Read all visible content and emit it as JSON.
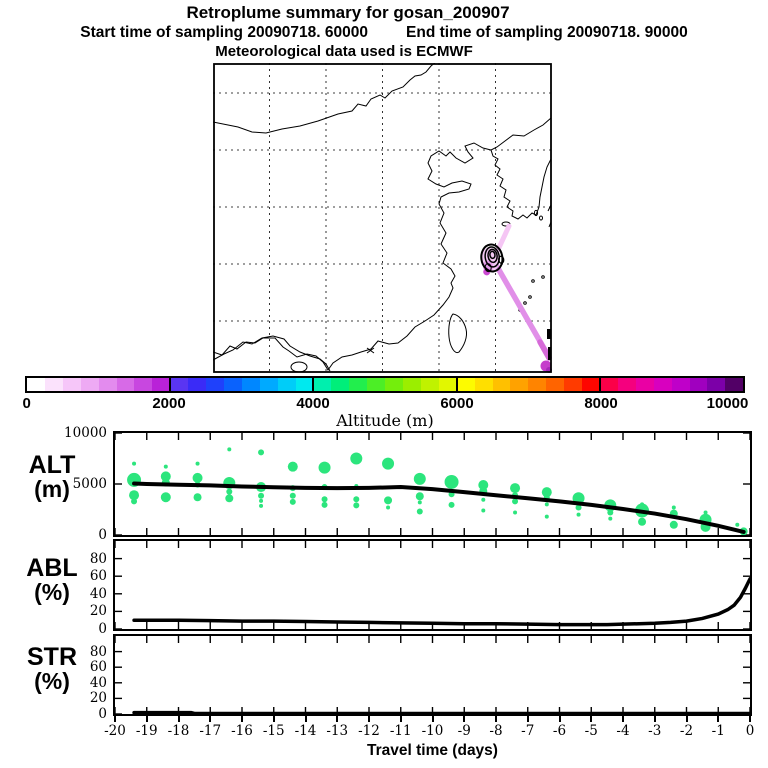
{
  "titles": {
    "main": "Retroplume summary for gosan_200907",
    "start": "Start time of sampling 20090718. 60000",
    "end": "End time of sampling 20090718. 90000",
    "met": "Meteorological data used is ECMWF"
  },
  "map": {
    "trajectory": {
      "light": "#f5c6f4",
      "mid": "#e18fe8",
      "deep": "#d66ad8",
      "end_blob": "#c53ecb",
      "end_blob_dark": "#a428b8",
      "cluster_fill_light": "#f3c8f2",
      "cluster_fill_mid": "#e39ae8",
      "cluster_fill_deep": "#cb4ad2"
    },
    "outline_color": "#000000"
  },
  "colorbar": {
    "title": "Altitude (m)",
    "tick_labels": [
      "0",
      "2000",
      "4000",
      "6000",
      "8000",
      "10000"
    ],
    "colors": [
      "#ffffff",
      "#fbe2fc",
      "#f6c6f9",
      "#eeaaf4",
      "#e38bee",
      "#d76ae7",
      "#c847e0",
      "#b922d8",
      "#5a35f2",
      "#3a2bf7",
      "#1f41fb",
      "#0a62fd",
      "#0087ff",
      "#00aaff",
      "#00cdf8",
      "#00e9ef",
      "#00efae",
      "#00ee7a",
      "#22ee4d",
      "#4cee26",
      "#74ee0c",
      "#9bee00",
      "#c0f200",
      "#e2f700",
      "#fdfb00",
      "#ffdf00",
      "#ffc000",
      "#ffa200",
      "#ff8400",
      "#ff6400",
      "#ff3b00",
      "#fe0600",
      "#fb0048",
      "#f5007e",
      "#ea00a4",
      "#d800bf",
      "#bf00c9",
      "#a000bf",
      "#7c00a8",
      "#520066"
    ]
  },
  "x_axis": {
    "labels": [
      "-20",
      "-19",
      "-18",
      "-17",
      "-16",
      "-15",
      "-14",
      "-13",
      "-12",
      "-11",
      "-10",
      "-9",
      "-8",
      "-7",
      "-6",
      "-5",
      "-4",
      "-3",
      "-2",
      "-1",
      "0"
    ],
    "title": "Travel time (days)",
    "xlim": [
      -20,
      0
    ]
  },
  "chart_data": [
    {
      "type": "scatter",
      "label": "ALT",
      "unit": "(m)",
      "ylim": [
        0,
        10000
      ],
      "yticks": [
        0,
        5000,
        10000
      ],
      "ytick_labels": [
        "0",
        "5000",
        "10000"
      ],
      "dot_color": "#2ce57d",
      "line_color": "#000000",
      "line": [
        [
          -19.4,
          5050
        ],
        [
          -19,
          5000
        ],
        [
          -18,
          4930
        ],
        [
          -17,
          4860
        ],
        [
          -16,
          4760
        ],
        [
          -15,
          4680
        ],
        [
          -14,
          4620
        ],
        [
          -13,
          4600
        ],
        [
          -12,
          4620
        ],
        [
          -11,
          4700
        ],
        [
          -10,
          4500
        ],
        [
          -9,
          4200
        ],
        [
          -8,
          3900
        ],
        [
          -7,
          3600
        ],
        [
          -6,
          3300
        ],
        [
          -5,
          2950
        ],
        [
          -4,
          2550
        ],
        [
          -3,
          2100
        ],
        [
          -2,
          1550
        ],
        [
          -1,
          900
        ],
        [
          -0.2,
          300
        ]
      ],
      "scatter": [
        [
          -19.4,
          7000,
          2
        ],
        [
          -19.4,
          5400,
          7
        ],
        [
          -19.4,
          3900,
          5
        ],
        [
          -19.4,
          3300,
          3
        ],
        [
          -18.4,
          6700,
          2
        ],
        [
          -18.4,
          5750,
          5
        ],
        [
          -18.4,
          5150,
          4
        ],
        [
          -18.4,
          3700,
          5
        ],
        [
          -17.4,
          7000,
          2
        ],
        [
          -17.4,
          5600,
          5
        ],
        [
          -17.4,
          4950,
          3
        ],
        [
          -17.4,
          3700,
          4
        ],
        [
          -16.4,
          8400,
          2
        ],
        [
          -16.4,
          5100,
          6
        ],
        [
          -16.4,
          4250,
          3
        ],
        [
          -16.4,
          3600,
          4
        ],
        [
          -15.4,
          8100,
          3
        ],
        [
          -15.4,
          4700,
          5
        ],
        [
          -15.4,
          3850,
          3
        ],
        [
          -15.4,
          3350,
          2
        ],
        [
          -15.4,
          2850,
          2
        ],
        [
          -14.4,
          6700,
          5
        ],
        [
          -14.4,
          4600,
          3
        ],
        [
          -14.4,
          3850,
          3
        ],
        [
          -14.4,
          3250,
          3
        ],
        [
          -13.4,
          6600,
          6
        ],
        [
          -13.4,
          4700,
          3
        ],
        [
          -13.4,
          3500,
          3
        ],
        [
          -13.4,
          2950,
          3
        ],
        [
          -12.4,
          7500,
          6
        ],
        [
          -12.4,
          4800,
          2
        ],
        [
          -12.4,
          3500,
          3
        ],
        [
          -12.4,
          2900,
          3
        ],
        [
          -11.4,
          7000,
          6
        ],
        [
          -11.4,
          3400,
          4
        ],
        [
          -11.4,
          2700,
          2
        ],
        [
          -10.4,
          5500,
          6
        ],
        [
          -10.4,
          3800,
          4
        ],
        [
          -10.4,
          3200,
          2
        ],
        [
          -10.4,
          2300,
          3
        ],
        [
          -9.4,
          5200,
          7
        ],
        [
          -9.4,
          4000,
          3
        ],
        [
          -9.4,
          2950,
          3
        ],
        [
          -8.4,
          4900,
          5
        ],
        [
          -8.4,
          4300,
          4
        ],
        [
          -8.4,
          3450,
          2
        ],
        [
          -8.4,
          2400,
          2
        ],
        [
          -7.4,
          4600,
          5
        ],
        [
          -7.4,
          3900,
          3
        ],
        [
          -7.4,
          3300,
          3
        ],
        [
          -7.4,
          2200,
          2
        ],
        [
          -6.4,
          4200,
          5
        ],
        [
          -6.4,
          3700,
          3
        ],
        [
          -6.4,
          3000,
          2
        ],
        [
          -6.4,
          1800,
          2
        ],
        [
          -5.4,
          3600,
          6
        ],
        [
          -5.4,
          2700,
          3
        ],
        [
          -5.4,
          2000,
          2
        ],
        [
          -4.4,
          2900,
          6
        ],
        [
          -4.4,
          2200,
          3
        ],
        [
          -4.4,
          1600,
          2
        ],
        [
          -3.4,
          3000,
          2
        ],
        [
          -3.4,
          2400,
          7
        ],
        [
          -3.4,
          1300,
          4
        ],
        [
          -2.4,
          2700,
          2
        ],
        [
          -2.4,
          2100,
          4
        ],
        [
          -2.4,
          1000,
          4
        ],
        [
          -1.4,
          2200,
          2
        ],
        [
          -1.4,
          1500,
          6
        ],
        [
          -1.4,
          800,
          5
        ],
        [
          -0.4,
          1000,
          2
        ],
        [
          -0.2,
          350,
          4
        ]
      ]
    },
    {
      "type": "line",
      "label": "ABL",
      "unit": "(%)",
      "ylim": [
        0,
        100
      ],
      "yticks": [
        0,
        20,
        40,
        60,
        80
      ],
      "ytick_labels": [
        "0",
        "20",
        "40",
        "60",
        "80"
      ],
      "line_color": "#000000",
      "line": [
        [
          -19.4,
          10
        ],
        [
          -18,
          10
        ],
        [
          -17,
          9.5
        ],
        [
          -16,
          9
        ],
        [
          -15,
          9
        ],
        [
          -14,
          8.5
        ],
        [
          -13,
          8
        ],
        [
          -12,
          7.5
        ],
        [
          -11,
          7
        ],
        [
          -10,
          6.5
        ],
        [
          -9,
          6
        ],
        [
          -8,
          6
        ],
        [
          -7,
          5.5
        ],
        [
          -6,
          5
        ],
        [
          -5,
          5
        ],
        [
          -4.5,
          5
        ],
        [
          -4,
          5.5
        ],
        [
          -3,
          6.5
        ],
        [
          -2.5,
          7.5
        ],
        [
          -2,
          9
        ],
        [
          -1.5,
          12
        ],
        [
          -1,
          17
        ],
        [
          -0.7,
          22
        ],
        [
          -0.5,
          27
        ],
        [
          -0.3,
          36
        ],
        [
          -0.15,
          46
        ],
        [
          0,
          57
        ]
      ]
    },
    {
      "type": "line",
      "label": "STR",
      "unit": "(%)",
      "ylim": [
        0,
        100
      ],
      "yticks": [
        0,
        20,
        40,
        60,
        80
      ],
      "ytick_labels": [
        "0",
        "20",
        "40",
        "60",
        "80"
      ],
      "line_color": "#000000",
      "line": [
        [
          -19.4,
          1.8
        ],
        [
          -17.6,
          1.8
        ],
        [
          -17.5,
          0.7
        ],
        [
          -14,
          0.7
        ],
        [
          -10,
          0.6
        ],
        [
          -5,
          0.6
        ],
        [
          0,
          0.6
        ]
      ]
    }
  ]
}
